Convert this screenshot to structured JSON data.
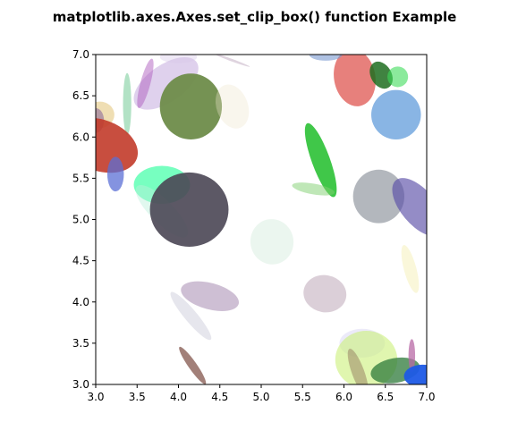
{
  "chart_data": {
    "type": "scatter",
    "title": "matplotlib.axes.Axes.set_clip_box() function Example",
    "xlabel": "",
    "ylabel": "",
    "xlim": [
      3.0,
      7.0
    ],
    "ylim": [
      3.0,
      7.0
    ],
    "xticks": [
      3.0,
      3.5,
      4.0,
      4.5,
      5.0,
      5.5,
      6.0,
      6.5,
      7.0
    ],
    "xtick_labels": [
      "3.0",
      "3.5",
      "4.0",
      "4.5",
      "5.0",
      "5.5",
      "6.0",
      "6.5",
      "7.0"
    ],
    "yticks": [
      3.0,
      3.5,
      4.0,
      4.5,
      5.0,
      5.5,
      6.0,
      6.5,
      7.0
    ],
    "ytick_labels": [
      "3.0",
      "3.5",
      "4.0",
      "4.5",
      "5.0",
      "5.5",
      "6.0",
      "6.5",
      "7.0"
    ],
    "grid": false,
    "ellipses": [
      {
        "cx": 3.85,
        "cy": 6.65,
        "w": 0.9,
        "h": 0.45,
        "angle": 35,
        "color": "#b89ad8",
        "alpha": 0.45
      },
      {
        "cx": 3.6,
        "cy": 6.65,
        "w": 0.12,
        "h": 0.62,
        "angle": -15,
        "color": "#b060c0",
        "alpha": 0.5
      },
      {
        "cx": 3.38,
        "cy": 6.4,
        "w": 0.1,
        "h": 0.75,
        "angle": 0,
        "color": "#7fcf9f",
        "alpha": 0.6
      },
      {
        "cx": 4.15,
        "cy": 6.37,
        "w": 0.75,
        "h": 0.8,
        "angle": 0,
        "color": "#6e8c4a",
        "alpha": 0.95
      },
      {
        "cx": 4.65,
        "cy": 6.37,
        "w": 0.38,
        "h": 0.55,
        "angle": 20,
        "color": "#efe5cc",
        "alpha": 0.35
      },
      {
        "cx": 3.05,
        "cy": 6.27,
        "w": 0.35,
        "h": 0.32,
        "angle": 0,
        "color": "#e6cc8a",
        "alpha": 0.65
      },
      {
        "cx": 3.0,
        "cy": 6.2,
        "w": 0.2,
        "h": 0.3,
        "angle": 0,
        "color": "#8c6a9a",
        "alpha": 0.6
      },
      {
        "cx": 3.05,
        "cy": 5.9,
        "w": 0.95,
        "h": 0.62,
        "angle": -20,
        "color": "#c23b2a",
        "alpha": 0.9
      },
      {
        "cx": 3.24,
        "cy": 5.55,
        "w": 0.2,
        "h": 0.42,
        "angle": 0,
        "color": "#5b6fd6",
        "alpha": 0.75
      },
      {
        "cx": 3.8,
        "cy": 5.42,
        "w": 0.68,
        "h": 0.46,
        "angle": 0,
        "color": "#2eff9e",
        "alpha": 0.65
      },
      {
        "cx": 3.8,
        "cy": 5.1,
        "w": 0.85,
        "h": 0.28,
        "angle": -45,
        "color": "#bdf0dc",
        "alpha": 0.45
      },
      {
        "cx": 4.13,
        "cy": 5.12,
        "w": 0.95,
        "h": 0.9,
        "angle": 0,
        "color": "#4a4654",
        "alpha": 0.9
      },
      {
        "cx": 5.72,
        "cy": 5.72,
        "w": 0.22,
        "h": 0.95,
        "angle": 20,
        "color": "#1ebd29",
        "alpha": 0.85
      },
      {
        "cx": 5.63,
        "cy": 5.37,
        "w": 0.52,
        "h": 0.13,
        "angle": -10,
        "color": "#7fcf6f",
        "alpha": 0.5
      },
      {
        "cx": 5.13,
        "cy": 4.73,
        "w": 0.52,
        "h": 0.55,
        "angle": 10,
        "color": "#cce8d8",
        "alpha": 0.4
      },
      {
        "cx": 6.13,
        "cy": 6.72,
        "w": 0.5,
        "h": 0.7,
        "angle": 10,
        "color": "#dd4a45",
        "alpha": 0.7
      },
      {
        "cx": 6.45,
        "cy": 6.75,
        "w": 0.25,
        "h": 0.35,
        "angle": 30,
        "color": "#1f6d20",
        "alpha": 0.85
      },
      {
        "cx": 6.65,
        "cy": 6.73,
        "w": 0.25,
        "h": 0.25,
        "angle": 0,
        "color": "#3ddc5a",
        "alpha": 0.6
      },
      {
        "cx": 6.63,
        "cy": 6.27,
        "w": 0.6,
        "h": 0.6,
        "angle": 0,
        "color": "#4a8ed6",
        "alpha": 0.65
      },
      {
        "cx": 6.42,
        "cy": 5.28,
        "w": 0.62,
        "h": 0.65,
        "angle": 0,
        "color": "#8a919a",
        "alpha": 0.65
      },
      {
        "cx": 6.9,
        "cy": 5.15,
        "w": 0.42,
        "h": 0.85,
        "angle": 40,
        "color": "#5b4ea8",
        "alpha": 0.65
      },
      {
        "cx": 6.8,
        "cy": 4.4,
        "w": 0.15,
        "h": 0.6,
        "angle": 15,
        "color": "#f6f2c2",
        "alpha": 0.6
      },
      {
        "cx": 4.38,
        "cy": 4.07,
        "w": 0.72,
        "h": 0.32,
        "angle": -15,
        "color": "#a68ab0",
        "alpha": 0.55
      },
      {
        "cx": 4.15,
        "cy": 3.83,
        "w": 0.15,
        "h": 0.75,
        "angle": 40,
        "color": "#c8c8d8",
        "alpha": 0.45
      },
      {
        "cx": 5.77,
        "cy": 4.1,
        "w": 0.52,
        "h": 0.45,
        "angle": -10,
        "color": "#bea8b8",
        "alpha": 0.55
      },
      {
        "cx": 6.22,
        "cy": 3.5,
        "w": 0.55,
        "h": 0.35,
        "angle": 0,
        "color": "#e0dcf5",
        "alpha": 0.6
      },
      {
        "cx": 6.27,
        "cy": 3.3,
        "w": 0.75,
        "h": 0.7,
        "angle": 0,
        "color": "#ccf07a",
        "alpha": 0.6
      },
      {
        "cx": 6.17,
        "cy": 3.15,
        "w": 0.15,
        "h": 0.6,
        "angle": 20,
        "color": "#a0906a",
        "alpha": 0.6
      },
      {
        "cx": 6.62,
        "cy": 3.17,
        "w": 0.6,
        "h": 0.3,
        "angle": 10,
        "color": "#2e7a3a",
        "alpha": 0.75
      },
      {
        "cx": 6.82,
        "cy": 3.35,
        "w": 0.08,
        "h": 0.4,
        "angle": 0,
        "color": "#b86aa6",
        "alpha": 0.75
      },
      {
        "cx": 6.95,
        "cy": 3.1,
        "w": 0.45,
        "h": 0.28,
        "angle": 0,
        "color": "#1e5ae6",
        "alpha": 0.95
      },
      {
        "cx": 4.17,
        "cy": 3.23,
        "w": 0.1,
        "h": 0.55,
        "angle": 35,
        "color": "#7a4a40",
        "alpha": 0.7
      },
      {
        "cx": 5.78,
        "cy": 7.0,
        "w": 0.4,
        "h": 0.15,
        "angle": 0,
        "color": "#7a9ad0",
        "alpha": 0.6
      },
      {
        "cx": 4.65,
        "cy": 6.93,
        "w": 0.45,
        "h": 0.03,
        "angle": -20,
        "color": "#c9b7c9",
        "alpha": 0.6
      },
      {
        "cx": 4.0,
        "cy": 6.97,
        "w": 0.45,
        "h": 0.15,
        "angle": 0,
        "color": "#d8c8e8",
        "alpha": 0.4
      }
    ]
  }
}
